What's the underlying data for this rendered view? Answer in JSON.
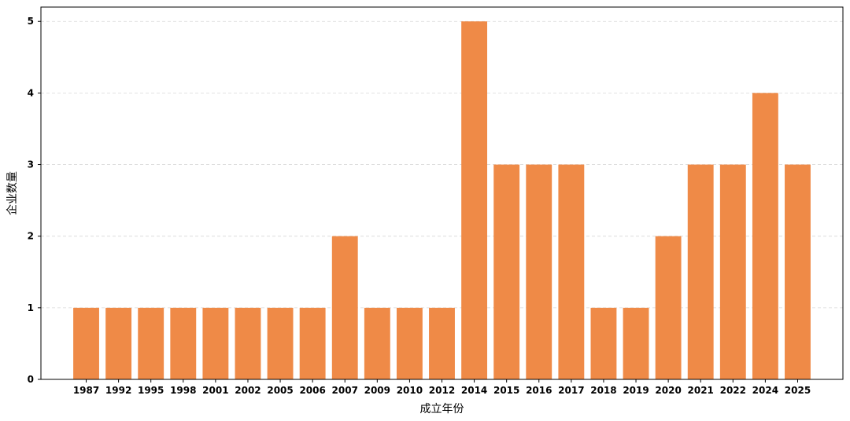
{
  "chart_data": {
    "type": "bar",
    "title": "",
    "xlabel": "成立年份",
    "ylabel": "企业数量",
    "categories": [
      "1987",
      "1992",
      "1995",
      "1998",
      "2001",
      "2002",
      "2005",
      "2006",
      "2007",
      "2009",
      "2010",
      "2012",
      "2014",
      "2015",
      "2016",
      "2017",
      "2018",
      "2019",
      "2020",
      "2021",
      "2022",
      "2024",
      "2025"
    ],
    "values": [
      1,
      1,
      1,
      1,
      1,
      1,
      1,
      1,
      2,
      1,
      1,
      1,
      5,
      3,
      3,
      3,
      1,
      1,
      2,
      3,
      3,
      4,
      3
    ],
    "ylim": [
      0,
      5.2
    ],
    "yticks": [
      0,
      1,
      2,
      3,
      4,
      5
    ],
    "grid": "horizontal-dashed",
    "bar_color": "#ef8a47",
    "legend": "none"
  }
}
